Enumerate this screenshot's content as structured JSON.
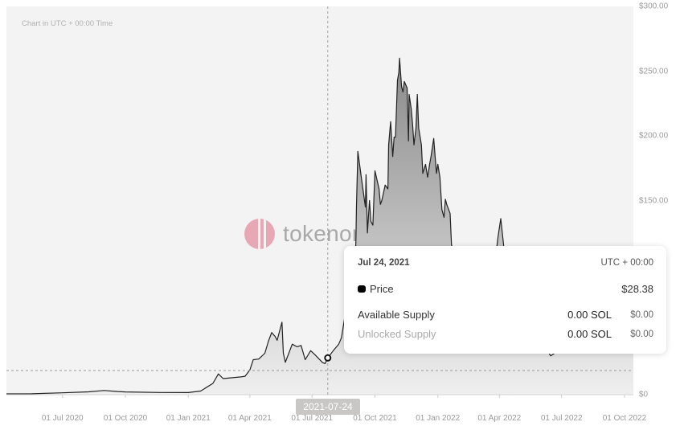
{
  "chart_note": "Chart in UTC + 00:00 Time",
  "watermark": "tokenomist",
  "colors": {
    "line": "#222222",
    "area_top": "#8a8a8a",
    "area_bottom": "#efefef",
    "plot_bg": "#f3f3f3",
    "watermark_logo": "#e79aab"
  },
  "hover": {
    "date_label": "2021-07-24",
    "tooltip": {
      "date": "Jul 24, 2021",
      "timezone": "UTC + 00:00",
      "price_label": "Price",
      "price_value": "$28.38",
      "rows": [
        {
          "label": "Available Supply",
          "amount": "0.00 SOL",
          "usd": "$0.00"
        },
        {
          "label": "Unlocked Supply",
          "amount": "0.00 SOL",
          "usd": "$0.00"
        }
      ]
    }
  },
  "chart_data": {
    "type": "area",
    "xlim": [
      "2020-04-10",
      "2022-10-14"
    ],
    "ylim": [
      0,
      300
    ],
    "y_axis_position": "right",
    "grid": false,
    "y_ticks": [
      {
        "value": 300,
        "label": "$300.00"
      },
      {
        "value": 250,
        "label": "$250.00"
      },
      {
        "value": 200,
        "label": "$200.00"
      },
      {
        "value": 150,
        "label": "$150.00"
      },
      {
        "value": 0,
        "label": "$0"
      }
    ],
    "x_ticks": [
      {
        "date": "2020-07-01",
        "label": "01 Jul 2020"
      },
      {
        "date": "2020-10-01",
        "label": "01 Oct 2020"
      },
      {
        "date": "2021-01-01",
        "label": "01 Jan 2021"
      },
      {
        "date": "2021-04-01",
        "label": "01 Apr 2021"
      },
      {
        "date": "2021-07-01",
        "label": "01 Jul 2021"
      },
      {
        "date": "2021-10-01",
        "label": "01 Oct 2021"
      },
      {
        "date": "2022-01-01",
        "label": "01 Jan 2022"
      },
      {
        "date": "2022-04-01",
        "label": "01 Apr 2022"
      },
      {
        "date": "2022-07-01",
        "label": "01 Jul 2022"
      },
      {
        "date": "2022-10-01",
        "label": "01 Oct 2022"
      }
    ],
    "hover_point": {
      "date": "2021-07-24",
      "price": 28.38
    },
    "series": [
      {
        "points": [
          [
            "2020-04-10",
            0.6
          ],
          [
            "2020-05-17",
            0.7
          ],
          [
            "2020-07-01",
            1.4
          ],
          [
            "2020-08-08",
            2.2
          ],
          [
            "2020-08-31",
            3.2
          ],
          [
            "2020-09-20",
            2.4
          ],
          [
            "2020-10-01",
            2.1
          ],
          [
            "2020-11-21",
            1.7
          ],
          [
            "2021-01-01",
            1.6
          ],
          [
            "2021-01-19",
            2.8
          ],
          [
            "2021-02-06",
            8.7
          ],
          [
            "2021-02-14",
            16
          ],
          [
            "2021-02-21",
            12.4
          ],
          [
            "2021-03-19",
            13.7
          ],
          [
            "2021-03-25",
            14.2
          ],
          [
            "2021-04-01",
            19
          ],
          [
            "2021-04-06",
            27
          ],
          [
            "2021-04-14",
            27.5
          ],
          [
            "2021-04-23",
            32
          ],
          [
            "2021-04-28",
            41
          ],
          [
            "2021-05-03",
            48
          ],
          [
            "2021-05-08",
            45
          ],
          [
            "2021-05-11",
            42
          ],
          [
            "2021-05-18",
            56
          ],
          [
            "2021-05-20",
            32
          ],
          [
            "2021-05-23",
            25
          ],
          [
            "2021-05-28",
            32
          ],
          [
            "2021-06-02",
            39
          ],
          [
            "2021-06-09",
            37
          ],
          [
            "2021-06-15",
            38
          ],
          [
            "2021-06-21",
            27
          ],
          [
            "2021-06-29",
            34
          ],
          [
            "2021-07-05",
            31
          ],
          [
            "2021-07-16",
            25
          ],
          [
            "2021-07-20",
            24
          ],
          [
            "2021-07-24",
            28.38
          ],
          [
            "2021-08-01",
            34
          ],
          [
            "2021-08-09",
            39
          ],
          [
            "2021-08-13",
            44
          ],
          [
            "2021-08-18",
            60
          ],
          [
            "2021-08-24",
            94
          ],
          [
            "2021-08-30",
            100
          ],
          [
            "2021-09-03",
            116
          ],
          [
            "2021-09-04",
            146
          ],
          [
            "2021-09-06",
            188
          ],
          [
            "2021-09-11",
            168
          ],
          [
            "2021-09-17",
            145
          ],
          [
            "2021-09-18",
            170
          ],
          [
            "2021-09-20",
            125
          ],
          [
            "2021-09-23",
            150
          ],
          [
            "2021-09-25",
            134
          ],
          [
            "2021-09-28",
            131
          ],
          [
            "2021-10-01",
            173
          ],
          [
            "2021-10-07",
            159
          ],
          [
            "2021-10-09",
            147
          ],
          [
            "2021-10-11",
            150
          ],
          [
            "2021-10-16",
            162
          ],
          [
            "2021-10-20",
            159
          ],
          [
            "2021-10-21",
            193
          ],
          [
            "2021-10-24",
            211
          ],
          [
            "2021-10-27",
            184
          ],
          [
            "2021-10-29",
            199
          ],
          [
            "2021-10-31",
            199
          ],
          [
            "2021-11-03",
            243
          ],
          [
            "2021-11-05",
            249
          ],
          [
            "2021-11-06",
            260
          ],
          [
            "2021-11-09",
            238
          ],
          [
            "2021-11-11",
            234
          ],
          [
            "2021-11-13",
            242
          ],
          [
            "2021-11-17",
            237
          ],
          [
            "2021-11-19",
            196
          ],
          [
            "2021-11-20",
            232
          ],
          [
            "2021-11-23",
            221
          ],
          [
            "2021-11-25",
            209
          ],
          [
            "2021-11-27",
            193
          ],
          [
            "2021-11-30",
            206
          ],
          [
            "2021-12-02",
            232
          ],
          [
            "2021-12-04",
            206
          ],
          [
            "2021-12-08",
            193
          ],
          [
            "2021-12-10",
            171
          ],
          [
            "2021-12-14",
            178
          ],
          [
            "2021-12-17",
            168
          ],
          [
            "2021-12-20",
            178
          ],
          [
            "2021-12-22",
            184
          ],
          [
            "2021-12-26",
            198
          ],
          [
            "2021-12-30",
            171
          ],
          [
            "2022-01-01",
            178
          ],
          [
            "2022-01-04",
            168
          ],
          [
            "2022-01-07",
            143
          ],
          [
            "2022-01-10",
            137
          ],
          [
            "2022-01-12",
            151
          ],
          [
            "2022-01-14",
            147
          ],
          [
            "2022-01-19",
            140
          ],
          [
            "2022-01-21",
            116
          ],
          [
            "2022-01-25",
            108
          ],
          [
            "2022-02-06",
            112
          ],
          [
            "2022-02-23",
            90
          ],
          [
            "2022-03-13",
            84
          ],
          [
            "2022-03-25",
            100
          ],
          [
            "2022-03-30",
            122
          ],
          [
            "2022-04-03",
            136
          ],
          [
            "2022-04-08",
            112
          ],
          [
            "2022-04-23",
            98
          ],
          [
            "2022-05-16",
            55
          ],
          [
            "2022-06-15",
            30
          ],
          [
            "2022-07-02",
            36
          ],
          [
            "2022-07-26",
            40
          ],
          [
            "2022-08-18",
            42
          ],
          [
            "2022-09-11",
            33
          ],
          [
            "2022-09-28",
            33
          ],
          [
            "2022-10-14",
            33
          ]
        ]
      }
    ]
  }
}
